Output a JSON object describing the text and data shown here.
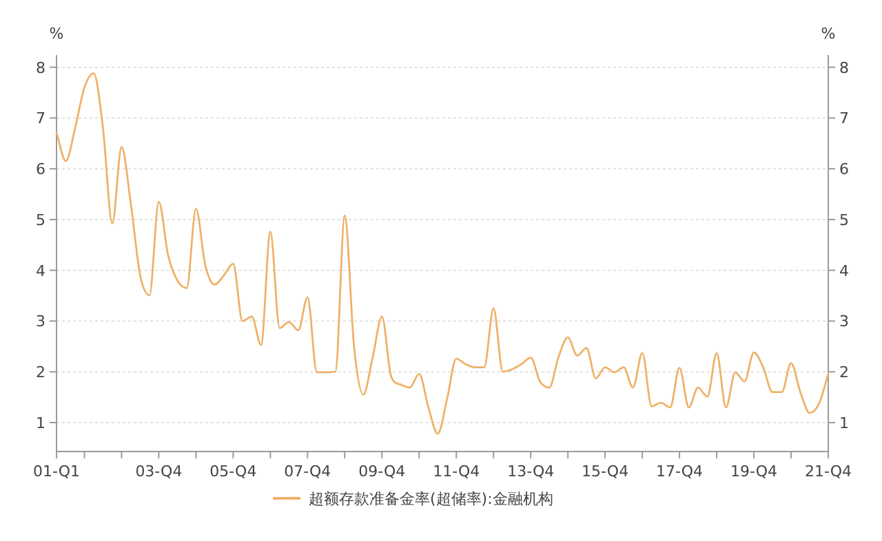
{
  "chart_data": {
    "type": "line",
    "ylabel": "%",
    "y2label": "%",
    "grid": "y",
    "legend": "bottom",
    "ylim": [
      0.43,
      8.24
    ],
    "y2lim": [
      0.43,
      8.24
    ],
    "yticks": [
      1,
      2,
      3,
      4,
      5,
      6,
      7,
      8
    ],
    "y2ticks": [
      1,
      2,
      3,
      4,
      5,
      6,
      7,
      8
    ],
    "categories": [
      "01-Q1",
      null,
      null,
      null,
      null,
      null,
      null,
      null,
      null,
      null,
      null,
      "03-Q4",
      null,
      null,
      null,
      null,
      null,
      null,
      null,
      "05-Q4",
      null,
      null,
      null,
      null,
      null,
      null,
      null,
      "07-Q4",
      null,
      null,
      null,
      null,
      null,
      null,
      null,
      "09-Q4",
      null,
      null,
      null,
      null,
      null,
      null,
      null,
      "11-Q4",
      null,
      null,
      null,
      null,
      null,
      null,
      null,
      "13-Q4",
      null,
      null,
      null,
      null,
      null,
      null,
      null,
      "15-Q4",
      null,
      null,
      null,
      null,
      null,
      null,
      null,
      "17-Q4",
      null,
      null,
      null,
      null,
      null,
      null,
      null,
      "19-Q4",
      null,
      null,
      null,
      null,
      null,
      null,
      null,
      "21-Q4"
    ],
    "series": [
      {
        "name": "超额存款准备金率(超储率):金融机构",
        "color": "#eeb26a",
        "values": [
          6.71,
          6.15,
          6.8,
          7.6,
          7.88,
          6.8,
          4.92,
          6.43,
          5.3,
          3.9,
          3.51,
          5.35,
          4.3,
          3.8,
          3.65,
          5.21,
          4.1,
          3.72,
          3.9,
          4.13,
          3.0,
          3.09,
          2.53,
          4.76,
          2.86,
          2.98,
          2.82,
          3.47,
          1.99,
          1.99,
          2.0,
          5.08,
          2.5,
          1.55,
          2.28,
          3.09,
          1.9,
          1.75,
          1.69,
          1.96,
          1.3,
          0.78,
          1.46,
          2.26,
          2.15,
          2.09,
          2.09,
          3.25,
          2.0,
          2.05,
          2.15,
          2.28,
          1.81,
          1.69,
          2.3,
          2.68,
          2.32,
          2.47,
          1.87,
          2.09,
          1.99,
          2.09,
          1.69,
          2.37,
          1.32,
          1.39,
          1.3,
          2.08,
          1.3,
          1.69,
          1.51,
          2.37,
          1.3,
          1.99,
          1.81,
          2.38,
          2.09,
          1.6,
          1.6,
          2.17,
          1.6,
          1.19,
          1.37,
          1.96
        ]
      }
    ]
  }
}
